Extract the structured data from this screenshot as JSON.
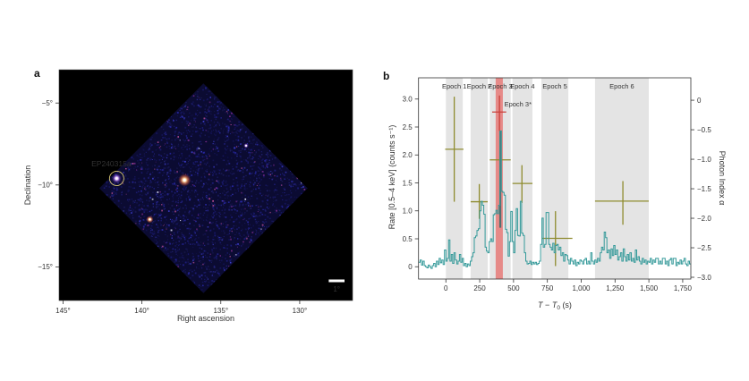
{
  "panels": {
    "a": {
      "label": "a",
      "xlabel": "Right ascension",
      "ylabel": "Declination",
      "source_label": "EP240315a",
      "scale_bar_label": "1°"
    },
    "b": {
      "label": "b",
      "xlabel_t": "T",
      "xlabel_minus": " − ",
      "xlabel_t2": "T",
      "xlabel_sub": "0",
      "xlabel_unit": " (s)",
      "ylabel_left": "Rate [0.5–4 keV] (counts s⁻¹)",
      "ylabel_right": "Photon Index α"
    }
  },
  "colors": {
    "curve": "#359a9a",
    "epoch": "#8e8b2e",
    "epoch_band": "#e4e4e4",
    "epoch3_vbar": "#527070",
    "special": "#c8403a",
    "special_band": "#e57f7d",
    "axis": "#333333",
    "annotation": "#d9c873",
    "sky_base": "#0b0b32",
    "sky_palette": [
      "#15155a",
      "#1d1d7a",
      "#2828a0",
      "#3c3cc8",
      "#232370",
      "#1a1a50",
      "#7a2a8a",
      "#c05098",
      "#e8e8ff"
    ],
    "scale_bar": "#ffffff"
  },
  "chart_data": [
    {
      "panel": "a",
      "type": "heatmap",
      "description": "Wide-field X-ray sky image (diamond field of view) with detected sources",
      "xlabel": "Right ascension",
      "ylabel": "Declination",
      "x_ticks": [
        145,
        140,
        135,
        130
      ],
      "x_tick_labels": [
        "145°",
        "140°",
        "135°",
        "130°"
      ],
      "y_ticks": [
        -5,
        -10,
        -15
      ],
      "y_tick_labels": [
        "−5°",
        "−10°",
        "−15°"
      ],
      "ra_range": [
        145.25,
        126.65
      ],
      "dec_range": [
        -2.97,
        -17.05
      ],
      "fov_diamond": {
        "center_ra": 136.1,
        "center_dec": -10.2,
        "half_ra": 6.6,
        "half_dec": 6.4
      },
      "sources": [
        {
          "name": "EP240315a",
          "ra": 141.6,
          "dec": -9.6,
          "intensity": "bright",
          "circled": true
        },
        {
          "name": "",
          "ra": 137.3,
          "dec": -9.7,
          "intensity": "brightest",
          "circled": false
        },
        {
          "name": "",
          "ra": 139.5,
          "dec": -12.1,
          "intensity": "moderate",
          "circled": false
        },
        {
          "name": "",
          "ra": 133.4,
          "dec": -7.6,
          "intensity": "faint",
          "circled": false
        }
      ],
      "scale_bar": {
        "label": "1°",
        "degrees": 1
      }
    },
    {
      "panel": "b",
      "type": "line",
      "xlabel": "T − T₀ (s)",
      "ylabel_left": "Rate [0.5–4 keV] (counts s⁻¹)",
      "ylabel_right": "Photon Index α",
      "x_ticks": [
        0,
        250,
        500,
        750,
        1000,
        1250,
        1500,
        1750
      ],
      "x_tick_labels": [
        "0",
        "250",
        "500",
        "750",
        "1,000",
        "1,250",
        "1,500",
        "1,750"
      ],
      "rate_ticks": [
        0,
        0.5,
        1.0,
        1.5,
        2.0,
        2.5,
        3.0
      ],
      "rate_tick_labels": [
        "0",
        "0.5",
        "1.0",
        "1.5",
        "2.0",
        "2.5",
        "3.0"
      ],
      "alpha_ticks": [
        0,
        -0.5,
        -1.0,
        -1.5,
        -2.0,
        -2.5,
        -3.0
      ],
      "alpha_tick_labels": [
        "0",
        "−0.5",
        "−1.0",
        "−1.5",
        "−2.0",
        "−2.5",
        "−3.0"
      ],
      "x_range": [
        -202,
        1810
      ],
      "rate_range": [
        -0.22,
        3.38
      ],
      "alpha_range": [
        -3.03,
        0.38
      ],
      "light_curve": {
        "t_start": -200,
        "t_step": 10,
        "rate": [
          0.08,
          0.12,
          0.03,
          0.1,
          0.02,
          0,
          -0.02,
          0.03,
          0,
          -0.03,
          0.02,
          0.06,
          0,
          0.1,
          0.04,
          0.15,
          0.07,
          0.12,
          0.04,
          0.3,
          0.1,
          0.15,
          0.48,
          0.1,
          0.22,
          0.06,
          0.25,
          0.12,
          0.05,
          0.1,
          0.22,
          0.08,
          0.15,
          0.02,
          0.06,
          0,
          0.05,
          0.02,
          0.1,
          0.18,
          0.25,
          0.52,
          0.55,
          0.65,
          0.68,
          1,
          1.17,
          1.1,
          0.94,
          0.35,
          0.28,
          0.25,
          0.45,
          0.5,
          0.45,
          0.93,
          0.95,
          1.01,
          0.95,
          1.1,
          2.43,
          1.35,
          1.33,
          1.28,
          0.67,
          0.61,
          0.19,
          0.45,
          0.99,
          0.45,
          0.25,
          0.65,
          1.04,
          0.56,
          0.55,
          1.17,
          0.6,
          0.56,
          0.25,
          0.1,
          0.05,
          0.06,
          0.1,
          0.04,
          0.08,
          0.05,
          0.08,
          0.04,
          0.06,
          0.1,
          0.4,
          0.87,
          0.35,
          0.4,
          0.97,
          0.97,
          0.4,
          0.35,
          0.3,
          0.42,
          0.25,
          0.38,
          0.4,
          0.3,
          0.35,
          0.2,
          0.25,
          0.1,
          0.22,
          0.2,
          0.12,
          0.05,
          0.15,
          0.1,
          0.05,
          0.12,
          0.02,
          0.08,
          0.05,
          0.12,
          0.1,
          0.05,
          0.12,
          0.15,
          0.05,
          0.1,
          0.05,
          0.25,
          0.1,
          0.05,
          0.12,
          0.08,
          0.15,
          0.1,
          0.25,
          0.35,
          0.3,
          0.62,
          0.52,
          0.25,
          0.3,
          0.15,
          0.32,
          0.2,
          0.38,
          0.22,
          0.3,
          0.12,
          0.18,
          0.25,
          0.1,
          0.32,
          0.18,
          0.1,
          0.22,
          0.12,
          0.25,
          0.1,
          0.15,
          0.08,
          0.3,
          0.12,
          0.18,
          0.1,
          0.05,
          0.15,
          0.08,
          0.12,
          0.05,
          0.1,
          0.08,
          0.15,
          0.05,
          0.12,
          0.08,
          0.15,
          0.15,
          0.05,
          0.1,
          0.05,
          0.15,
          0.15,
          0.05,
          0.1,
          0.02,
          0.12,
          0.15,
          0.05,
          0.15,
          0.15,
          0.02,
          0.08,
          0.05,
          0.12,
          0.05,
          0.1,
          0.15,
          0.05,
          0.02,
          0.1,
          0.05
        ]
      },
      "epochs": [
        {
          "label": "Epoch 1",
          "band": [
            0,
            125
          ],
          "t_center": 62,
          "t_bar": [
            -5,
            130
          ],
          "alpha": -0.83,
          "alpha_range": [
            -1.72,
            0.06
          ]
        },
        {
          "label": "Epoch 2",
          "band": [
            183,
            310
          ],
          "t_center": 247,
          "t_bar": [
            183,
            309
          ],
          "alpha": -1.72,
          "alpha_range": [
            -2.01,
            -1.42
          ]
        },
        {
          "label": "Epoch 3",
          "band": [
            324,
            479
          ],
          "t_center": 402,
          "t_bar": [
            324,
            479
          ],
          "alpha": -1.01,
          "alpha_range": [
            -2.16,
            -0.52
          ]
        },
        {
          "label": "Epoch 4",
          "band": [
            492,
            640
          ],
          "t_center": 562,
          "t_bar": [
            492,
            640
          ],
          "alpha": -1.41,
          "alpha_range": [
            -1.74,
            -1.1
          ]
        },
        {
          "label": "Epoch 5",
          "band": [
            706,
            905
          ],
          "t_center": 810,
          "t_bar": [
            710,
            935
          ],
          "alpha": -2.34,
          "alpha_range": [
            -2.81,
            -1.88
          ]
        },
        {
          "label": "Epoch 6",
          "band": [
            1102,
            1499
          ],
          "t_center": 1308,
          "t_bar": [
            1102,
            1499
          ],
          "alpha": -1.71,
          "alpha_range": [
            -2.11,
            -1.37
          ]
        }
      ],
      "special_epoch": {
        "label": "Epoch 3*",
        "band": [
          368,
          421
        ],
        "t_center": 396,
        "t_bar": [
          342,
          446
        ],
        "alpha": -0.2,
        "alpha_range": [
          -0.52,
          0.08
        ],
        "label_t": 432,
        "label_alpha": -0.105
      }
    }
  ]
}
